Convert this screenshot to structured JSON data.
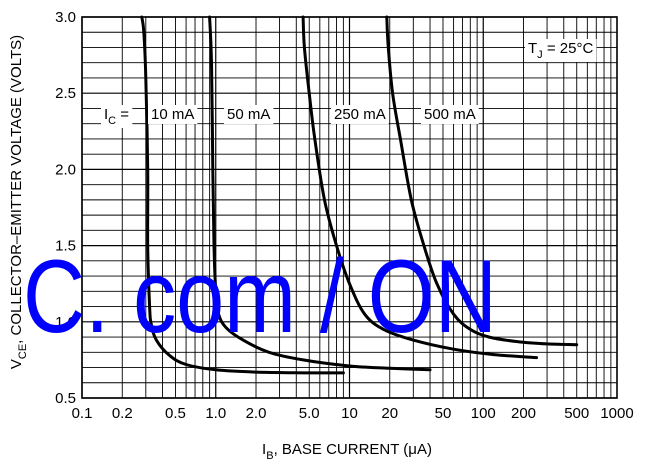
{
  "chart_data": {
    "type": "line",
    "title": "",
    "xlabel": {
      "main": "I",
      "sub": "B",
      "rest": ", BASE CURRENT (μA)"
    },
    "ylabel": {
      "main": "V",
      "sub": "CE",
      "rest": ", COLLECTOR–EMITTER VOLTAGE (VOLTS)"
    },
    "xscale": "log",
    "xlim": [
      0.1,
      1000
    ],
    "ylim": [
      0.5,
      3.0
    ],
    "grid": true,
    "x_tick_labels": [
      "0.1",
      "0.2",
      "0.5",
      "1.0",
      "2.0",
      "5.0",
      "10",
      "20",
      "50",
      "100",
      "200",
      "500",
      "1000"
    ],
    "x_tick_values": [
      0.1,
      0.2,
      0.5,
      1,
      2,
      5,
      10,
      20,
      50,
      100,
      200,
      500,
      1000
    ],
    "y_tick_labels": [
      "0.5",
      "1.0",
      "1.5",
      "2.0",
      "2.5",
      "3.0"
    ],
    "y_tick_values": [
      0.5,
      1.0,
      1.5,
      2.0,
      2.5,
      3.0
    ],
    "condition": {
      "main": "T",
      "sub": "J",
      "rest": " = 25°C"
    },
    "ic_prefix": {
      "main": "I",
      "sub": "C",
      "rest": " ="
    },
    "series": [
      {
        "name": "10 mA",
        "points": [
          [
            0.28,
            3.0
          ],
          [
            0.29,
            2.9
          ],
          [
            0.3,
            2.6
          ],
          [
            0.31,
            2.0
          ],
          [
            0.31,
            1.5
          ],
          [
            0.32,
            1.1
          ],
          [
            0.33,
            0.98
          ],
          [
            0.36,
            0.88
          ],
          [
            0.45,
            0.78
          ],
          [
            0.6,
            0.72
          ],
          [
            1.0,
            0.685
          ],
          [
            2.0,
            0.67
          ],
          [
            5.0,
            0.665
          ],
          [
            9.0,
            0.665
          ]
        ]
      },
      {
        "name": "50 mA",
        "points": [
          [
            0.9,
            3.0
          ],
          [
            0.93,
            2.7
          ],
          [
            0.95,
            2.0
          ],
          [
            0.97,
            1.5
          ],
          [
            1.0,
            1.2
          ],
          [
            1.05,
            1.05
          ],
          [
            1.2,
            0.96
          ],
          [
            1.6,
            0.88
          ],
          [
            2.5,
            0.8
          ],
          [
            4.5,
            0.75
          ],
          [
            10,
            0.71
          ],
          [
            20,
            0.695
          ],
          [
            40,
            0.685
          ]
        ]
      },
      {
        "name": "250 mA",
        "points": [
          [
            4.5,
            3.0
          ],
          [
            4.6,
            2.8
          ],
          [
            5.0,
            2.5
          ],
          [
            5.5,
            2.2
          ],
          [
            6.5,
            1.8
          ],
          [
            8.0,
            1.5
          ],
          [
            10,
            1.25
          ],
          [
            13,
            1.05
          ],
          [
            18,
            0.95
          ],
          [
            30,
            0.88
          ],
          [
            60,
            0.82
          ],
          [
            120,
            0.785
          ],
          [
            250,
            0.765
          ]
        ]
      },
      {
        "name": "500 mA",
        "points": [
          [
            19,
            3.0
          ],
          [
            19.5,
            2.8
          ],
          [
            21,
            2.5
          ],
          [
            24,
            2.2
          ],
          [
            29,
            1.8
          ],
          [
            36,
            1.5
          ],
          [
            45,
            1.25
          ],
          [
            60,
            1.05
          ],
          [
            80,
            0.95
          ],
          [
            110,
            0.9
          ],
          [
            180,
            0.87
          ],
          [
            300,
            0.855
          ],
          [
            500,
            0.85
          ]
        ]
      }
    ],
    "watermark": "C. com / ON"
  }
}
